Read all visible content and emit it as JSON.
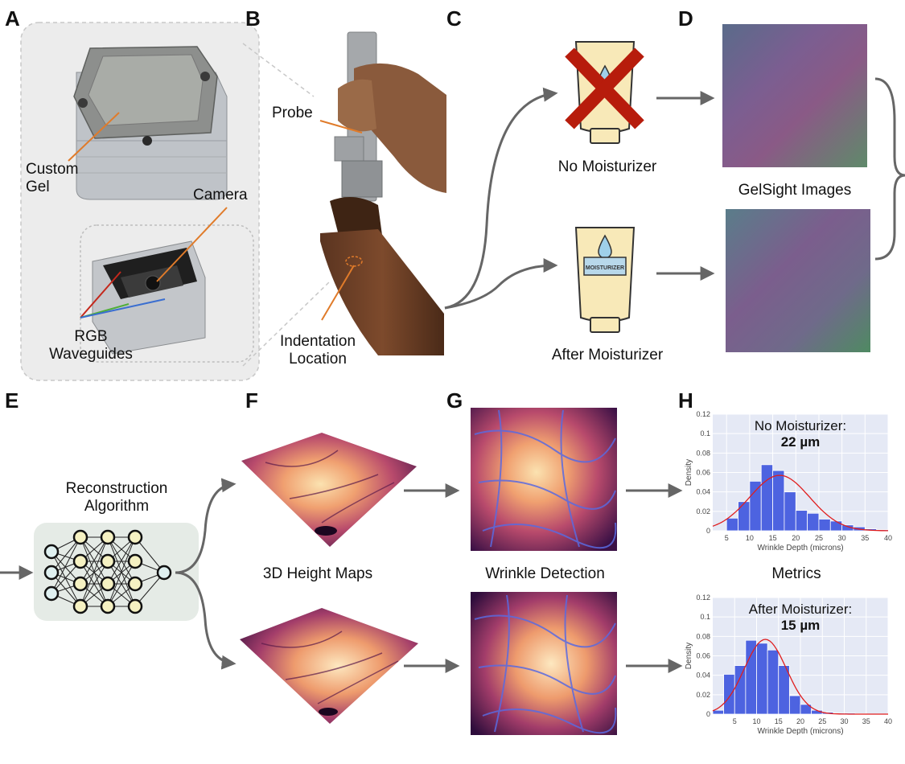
{
  "panels": {
    "a": {
      "letter": "A",
      "custom_gel": "Custom\nGel",
      "camera": "Camera",
      "rgb_waveguides": "RGB\nWaveguides"
    },
    "b": {
      "letter": "B",
      "probe": "Probe",
      "indentation_location": "Indentation\nLocation"
    },
    "c": {
      "letter": "C",
      "no_moisturizer": "No Moisturizer",
      "after_moisturizer": "After Moisturizer",
      "tube_label": "MOISTURIZER"
    },
    "d": {
      "letter": "D",
      "gelsight_images": "GelSight Images"
    },
    "e": {
      "letter": "E",
      "reconstruction": "Reconstruction\nAlgorithm"
    },
    "f": {
      "letter": "F",
      "height_maps": "3D Height Maps"
    },
    "g": {
      "letter": "G",
      "wrinkle_detection": "Wrinkle Detection"
    },
    "h": {
      "letter": "H",
      "metrics": "Metrics"
    }
  },
  "colors": {
    "arrow": "#666666",
    "orange_line": "#e07b2a",
    "cross": "#b71c0c",
    "tube": "#f8e9b8",
    "bar": "#4d63e0",
    "plot_bg": "#e5e9f5",
    "fit": "#e01e1e"
  },
  "chart_data": [
    {
      "type": "bar",
      "title": "No Moisturizer:",
      "subtitle": "22 µm",
      "xlabel": "Wrinkle Depth (microns)",
      "ylabel": "Density",
      "xlim": [
        2,
        40
      ],
      "ylim": [
        0,
        0.12
      ],
      "xticks": [
        5,
        10,
        15,
        20,
        25,
        30,
        35,
        40
      ],
      "yticks": [
        0,
        0.02,
        0.04,
        0.06,
        0.08,
        0.1,
        0.12
      ],
      "bin_width": 2.5,
      "bin_starts": [
        5,
        7.5,
        10,
        12.5,
        15,
        17.5,
        20,
        22.5,
        25,
        27.5,
        30,
        32.5,
        35,
        37.5
      ],
      "values": [
        0.013,
        0.03,
        0.051,
        0.068,
        0.062,
        0.04,
        0.021,
        0.018,
        0.012,
        0.01,
        0.006,
        0.004,
        0.002,
        0.001
      ],
      "fit": {
        "mean": 16.5,
        "sd": 6.5,
        "peak": 0.057
      }
    },
    {
      "type": "bar",
      "title": "After Moisturizer:",
      "subtitle": "15 µm",
      "xlabel": "Wrinkle Depth (microns)",
      "ylabel": "Density",
      "xlim": [
        0,
        40
      ],
      "ylim": [
        0,
        0.12
      ],
      "xticks": [
        5,
        10,
        15,
        20,
        25,
        30,
        35,
        40
      ],
      "yticks": [
        0,
        0.02,
        0.04,
        0.06,
        0.08,
        0.1,
        0.12
      ],
      "bin_width": 2.5,
      "bin_starts": [
        0,
        2.5,
        5,
        7.5,
        10,
        12.5,
        15,
        17.5,
        20,
        22.5,
        25,
        27.5,
        30,
        32.5
      ],
      "values": [
        0.004,
        0.041,
        0.05,
        0.076,
        0.073,
        0.066,
        0.05,
        0.019,
        0.01,
        0.004,
        0.002,
        0.001,
        0.001,
        0.0005
      ],
      "fit": {
        "mean": 12,
        "sd": 4.8,
        "peak": 0.077
      }
    }
  ]
}
